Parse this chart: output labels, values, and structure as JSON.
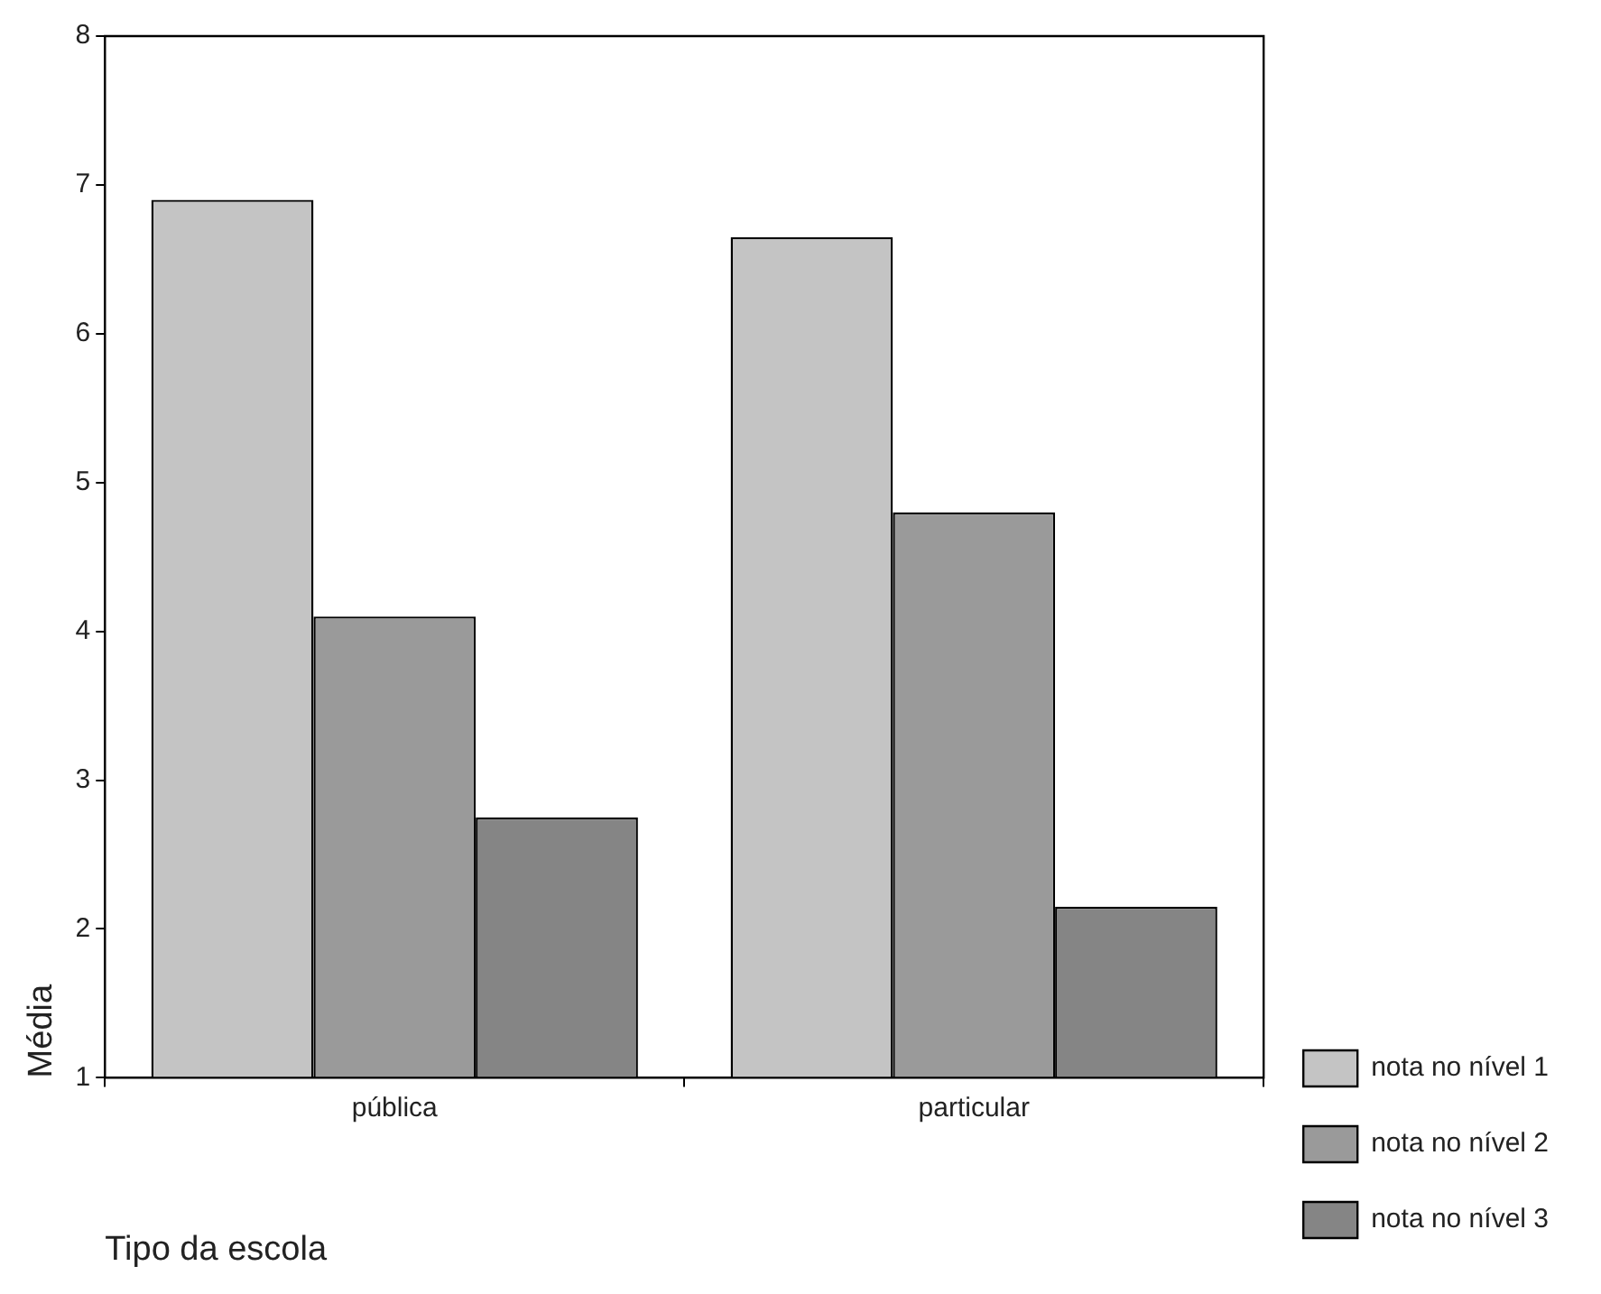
{
  "chart_data": {
    "type": "bar",
    "xlabel": "Tipo da escola",
    "ylabel": "Média",
    "categories": [
      "pública",
      "particular"
    ],
    "series": [
      {
        "name": "nota no nível 1",
        "color": "#c4c4c4",
        "values": [
          6.9,
          6.65
        ]
      },
      {
        "name": "nota no nível 2",
        "color": "#9a9a9a",
        "values": [
          4.1,
          4.8
        ]
      },
      {
        "name": "nota no nível 3",
        "color": "#858585",
        "values": [
          2.75,
          2.15
        ]
      }
    ],
    "ylim": [
      1,
      8
    ],
    "yticks": [
      1,
      2,
      3,
      4,
      5,
      6,
      7,
      8
    ],
    "grid": false,
    "legend": "right"
  }
}
